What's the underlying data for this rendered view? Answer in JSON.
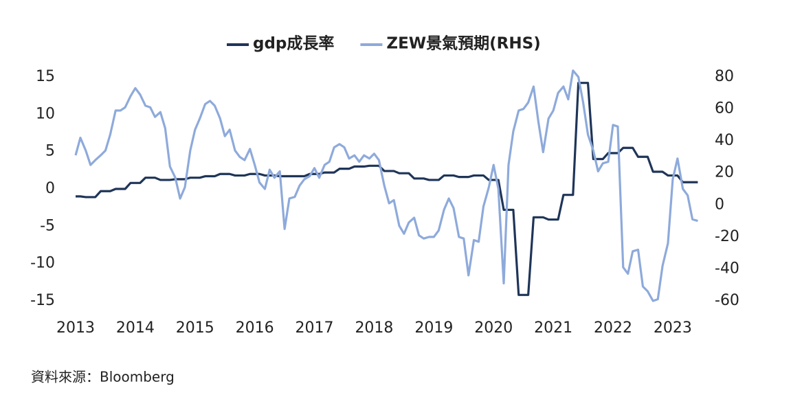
{
  "chart_data": {
    "type": "line",
    "source": "資料來源：Bloomberg",
    "x": [
      2013,
      2013.08,
      2013.17,
      2013.25,
      2013.33,
      2013.42,
      2013.5,
      2013.58,
      2013.67,
      2013.75,
      2013.83,
      2013.92,
      2014,
      2014.08,
      2014.17,
      2014.25,
      2014.33,
      2014.42,
      2014.5,
      2014.58,
      2014.67,
      2014.75,
      2014.83,
      2014.92,
      2015,
      2015.08,
      2015.17,
      2015.25,
      2015.33,
      2015.42,
      2015.5,
      2015.58,
      2015.67,
      2015.75,
      2015.83,
      2015.92,
      2016,
      2016.08,
      2016.17,
      2016.25,
      2016.33,
      2016.42,
      2016.5,
      2016.58,
      2016.67,
      2016.75,
      2016.83,
      2016.92,
      2017,
      2017.08,
      2017.17,
      2017.25,
      2017.33,
      2017.42,
      2017.5,
      2017.58,
      2017.67,
      2017.75,
      2017.83,
      2017.92,
      2018,
      2018.08,
      2018.17,
      2018.25,
      2018.33,
      2018.42,
      2018.5,
      2018.58,
      2018.67,
      2018.75,
      2018.83,
      2018.92,
      2019,
      2019.08,
      2019.17,
      2019.25,
      2019.33,
      2019.42,
      2019.5,
      2019.58,
      2019.67,
      2019.75,
      2019.83,
      2019.92,
      2020,
      2020.08,
      2020.17,
      2020.25,
      2020.33,
      2020.42,
      2020.5,
      2020.58,
      2020.67,
      2020.75,
      2020.83,
      2020.92,
      2021,
      2021.08,
      2021.17,
      2021.25,
      2021.33,
      2021.42,
      2021.5,
      2021.58,
      2021.67,
      2021.75,
      2021.83,
      2021.92,
      2022,
      2022.08,
      2022.17,
      2022.25,
      2022.33,
      2022.42,
      2022.5,
      2022.58,
      2022.67,
      2022.75,
      2022.83,
      2022.92,
      2023,
      2023.08,
      2023.17,
      2023.25,
      2023.33,
      2023.42
    ],
    "xlim": [
      2013,
      2023.45
    ],
    "xticks": [
      2013,
      2014,
      2015,
      2016,
      2017,
      2018,
      2019,
      2020,
      2021,
      2022,
      2023
    ],
    "ylim": [
      -15,
      15
    ],
    "yticks": [
      15,
      10,
      5,
      0,
      -5,
      -10,
      -15
    ],
    "y2lim": [
      -60,
      80
    ],
    "y2ticks": [
      80,
      60,
      40,
      20,
      0,
      -20,
      -40,
      -60
    ],
    "legend": "top",
    "series": [
      {
        "name": "gdp成長率",
        "color": "#1f3558",
        "axis": "y",
        "values": [
          -1.0,
          -1.0,
          -1.1,
          -1.1,
          -1.1,
          -0.3,
          -0.3,
          -0.3,
          0,
          0,
          0,
          0.8,
          0.8,
          0.8,
          1.5,
          1.5,
          1.5,
          1.2,
          1.2,
          1.2,
          1.3,
          1.3,
          1.3,
          1.5,
          1.5,
          1.5,
          1.7,
          1.7,
          1.7,
          2.0,
          2.0,
          2.0,
          1.8,
          1.8,
          1.8,
          2.0,
          2.0,
          2.0,
          1.8,
          1.8,
          1.8,
          1.7,
          1.7,
          1.7,
          1.7,
          1.7,
          1.7,
          2.0,
          2.0,
          2.0,
          2.2,
          2.2,
          2.2,
          2.7,
          2.7,
          2.7,
          3.0,
          3.0,
          3.0,
          3.1,
          3.1,
          3.1,
          2.4,
          2.4,
          2.4,
          2.1,
          2.1,
          2.1,
          1.4,
          1.4,
          1.4,
          1.2,
          1.2,
          1.2,
          1.8,
          1.8,
          1.8,
          1.6,
          1.6,
          1.6,
          1.8,
          1.8,
          1.8,
          1.2,
          1.2,
          1.2,
          -2.8,
          -2.8,
          -2.8,
          -14.2,
          -14.2,
          -14.2,
          -3.8,
          -3.8,
          -3.8,
          -4.1,
          -4.1,
          -4.1,
          -0.8,
          -0.8,
          -0.8,
          14.2,
          14.2,
          14.2,
          4.0,
          4.0,
          4.0,
          4.8,
          4.8,
          4.8,
          5.5,
          5.5,
          5.5,
          4.3,
          4.3,
          4.3,
          2.3,
          2.3,
          2.3,
          1.8,
          1.8,
          1.8,
          0.9,
          0.9,
          0.9,
          0.9
        ]
      },
      {
        "name": "ZEW景氣預期(RHS)",
        "color": "#8eaadb",
        "axis": "y2",
        "values": [
          31,
          42,
          34,
          25,
          28,
          31,
          34,
          44,
          59,
          59,
          61,
          68,
          73,
          69,
          62,
          61,
          55,
          58,
          48,
          24,
          17,
          4,
          11,
          34,
          47,
          54,
          63,
          65,
          62,
          54,
          43,
          47,
          34,
          30,
          28,
          35,
          25,
          14,
          10,
          22,
          17,
          21,
          -15,
          4,
          5,
          12,
          16,
          18,
          23,
          17,
          25,
          27,
          36,
          38,
          36,
          29,
          31,
          27,
          31,
          29,
          32,
          28,
          12,
          1,
          3,
          -13,
          -18,
          -11,
          -8,
          -19,
          -21,
          -20,
          -20,
          -16,
          -3,
          4,
          -2,
          -20,
          -21,
          -44,
          -22,
          -23,
          -1,
          11,
          25,
          10,
          -49,
          25,
          46,
          59,
          60,
          64,
          74,
          52,
          33,
          54,
          59,
          70,
          74,
          66,
          84,
          80,
          64,
          44,
          34,
          21,
          26,
          27,
          50,
          49,
          -39,
          -43,
          -29,
          -28,
          -51,
          -54,
          -60,
          -59,
          -38,
          -24,
          16,
          29,
          10,
          6,
          -9,
          -10
        ]
      }
    ]
  }
}
